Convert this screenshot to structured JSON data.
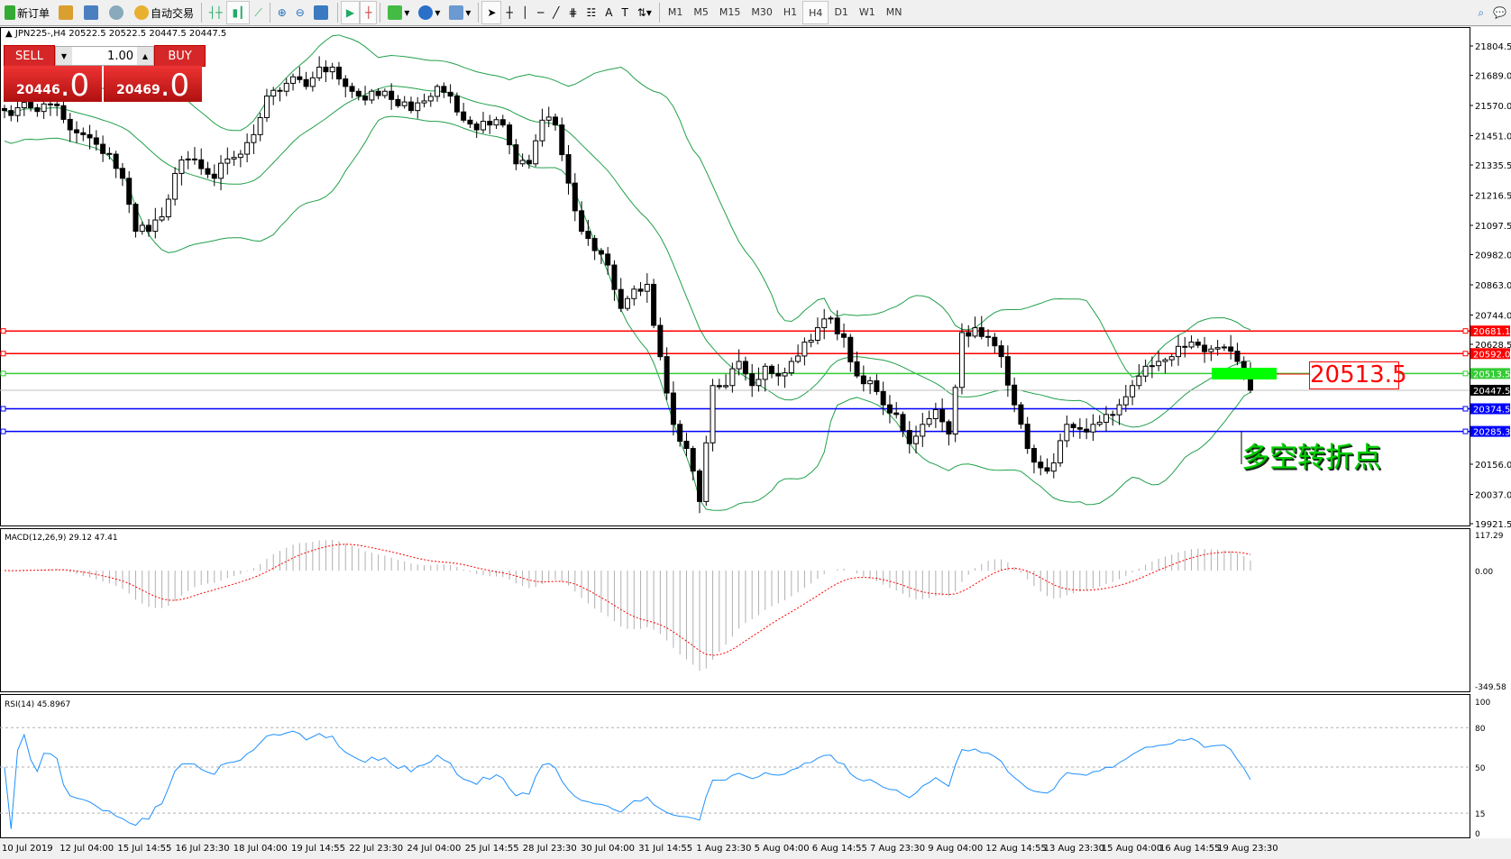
{
  "toolbar": {
    "new_order": "新订单",
    "auto_trading": "自动交易",
    "timeframes": [
      "M1",
      "M5",
      "M15",
      "M30",
      "H1",
      "H4",
      "D1",
      "W1",
      "MN"
    ],
    "active_timeframe": "H4",
    "icons": [
      "new-order-icon",
      "market-watch-icon",
      "data-window-icon",
      "navigator-icon",
      "auto-trading-icon",
      "bar-chart-icon",
      "candlestick-icon",
      "line-chart-icon",
      "zoom-in-icon",
      "zoom-out-icon",
      "tile-windows-icon",
      "chart-shift-icon",
      "autoscroll-icon",
      "indicators-icon",
      "periods-icon",
      "templates-icon",
      "cursor-icon",
      "crosshair-icon",
      "vertical-line-icon",
      "horizontal-line-icon",
      "trendline-icon",
      "fibonacci-icon",
      "fibonacci-fan-icon",
      "text-icon",
      "label-icon",
      "arrows-icon",
      "search-icon",
      "chat-icon"
    ]
  },
  "chart": {
    "header": "JPN225-,H4  20522.5 20522.5 20447.5 20447.5",
    "one_click": {
      "sell": "SELL",
      "buy": "BUY",
      "lot": "1.00",
      "bid_main": "20446",
      "bid_frac": ".0",
      "ask_main": "20469",
      "ask_frac": ".0"
    },
    "price_labels": [
      "21804.5",
      "21689.0",
      "21570.0",
      "21451.0",
      "21335.5",
      "21216.5",
      "21097.5",
      "20982.0",
      "20863.0",
      "20744.0",
      "20628.5",
      "20156.0",
      "20037.0",
      "19921.5"
    ],
    "levels": [
      {
        "price": "20681.1",
        "color": "#ff0000"
      },
      {
        "price": "20592.0",
        "color": "#ff0000"
      },
      {
        "price": "20513.5",
        "color": "#33cc33"
      },
      {
        "price": "20447.5",
        "color": "#000000"
      },
      {
        "price": "20374.5",
        "color": "#0000ff"
      },
      {
        "price": "20285.3",
        "color": "#0000ff"
      }
    ],
    "annotation_price": "20513.5",
    "annotation_text": "多空转折点",
    "band_color": "#21a04a"
  },
  "chart_data": {
    "type": "candlestick",
    "symbol": "JPN225-",
    "timeframe": "H4",
    "ylim": [
      19921.5,
      21804.5
    ],
    "closes": [
      21550,
      21561,
      21561,
      21576,
      21569,
      21474,
      21455,
      21417,
      21378,
      21283,
      21074,
      21074,
      21131,
      21302,
      21359,
      21321,
      21283,
      21359,
      21378,
      21455,
      21607,
      21626,
      21683,
      21645,
      21721,
      21721,
      21645,
      21607,
      21626,
      21626,
      21569,
      21550,
      21588,
      21645,
      21607,
      21512,
      21474,
      21493,
      21493,
      21340,
      21340,
      21512,
      21493,
      21264,
      21074,
      20998,
      20941,
      20770,
      20846,
      20865,
      20580,
      20313,
      20218,
      20009,
      20466,
      20466,
      20561,
      20466,
      20542,
      20504,
      20561,
      20637,
      20694,
      20732,
      20656,
      20504,
      20485,
      20390,
      20352,
      20237,
      20313,
      20371,
      20275,
      20675,
      20694,
      20656,
      20580,
      20390,
      20218,
      20142,
      20161,
      20313,
      20294,
      20313,
      20352,
      20390,
      20466,
      20542,
      20561,
      20580,
      20618,
      20625,
      20610,
      20618,
      20561,
      20447.5
    ],
    "indicators": {
      "bollinger": "Bands(20,2)",
      "macd_label": "MACD(12,26,9) 29.12 47.41",
      "rsi_label": "RSI(14) 45.8967"
    },
    "macd_axis": [
      "117.29",
      "0.00",
      "-349.58"
    ],
    "rsi_axis": [
      "100",
      "80",
      "50",
      "15",
      "0"
    ],
    "time_labels": [
      "10 Jul 2019",
      "12 Jul 04:00",
      "15 Jul 14:55",
      "16 Jul 23:30",
      "18 Jul 04:00",
      "19 Jul 14:55",
      "22 Jul 23:30",
      "24 Jul 04:00",
      "25 Jul 14:55",
      "28 Jul 23:30",
      "30 Jul 04:00",
      "31 Jul 14:55",
      "1 Aug 23:30",
      "5 Aug 04:00",
      "6 Aug 14:55",
      "7 Aug 23:30",
      "9 Aug 04:00",
      "12 Aug 14:55",
      "13 Aug 23:30",
      "15 Aug 04:00",
      "16 Aug 14:55",
      "19 Aug 23:30"
    ]
  }
}
